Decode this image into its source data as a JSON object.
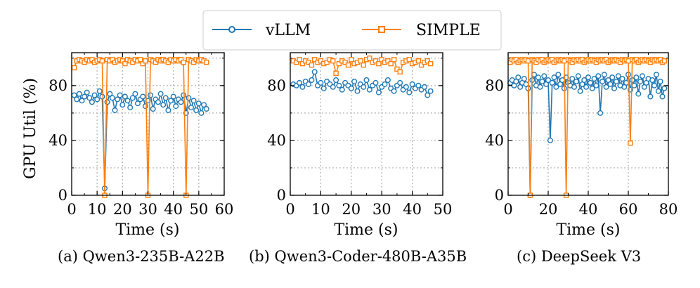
{
  "chart_data": [
    {
      "type": "line",
      "caption": "(a) Qwen3-235B-A22B",
      "xlabel": "Time (s)",
      "ylabel": "GPU Util (%)",
      "xlim": [
        0,
        60
      ],
      "ylim": [
        0,
        104
      ],
      "xticks": [
        0,
        10,
        20,
        30,
        40,
        50,
        60
      ],
      "yticks": [
        0,
        40,
        80
      ],
      "grid": true,
      "series": [
        {
          "name": "vLLM",
          "x": [
            1,
            2,
            3,
            4,
            5,
            6,
            7,
            8,
            9,
            10,
            11,
            12,
            13,
            14,
            15,
            16,
            17,
            18,
            19,
            20,
            21,
            22,
            23,
            24,
            25,
            26,
            27,
            28,
            29,
            30,
            31,
            32,
            33,
            34,
            35,
            36,
            37,
            38,
            39,
            40,
            41,
            42,
            43,
            44,
            45,
            46,
            47,
            48,
            49,
            50,
            51,
            52,
            53
          ],
          "values": [
            73,
            70,
            74,
            69,
            72,
            75,
            71,
            68,
            73,
            70,
            76,
            72,
            5,
            68,
            74,
            71,
            62,
            70,
            73,
            66,
            72,
            69,
            64,
            71,
            74,
            67,
            70,
            72,
            65,
            69,
            73,
            63,
            70,
            68,
            74,
            66,
            71,
            62,
            69,
            72,
            65,
            70,
            68,
            73,
            60,
            71,
            64,
            69,
            62,
            67,
            60,
            66,
            63
          ]
        },
        {
          "name": "SIMPLE",
          "x": [
            1,
            2,
            3,
            4,
            5,
            6,
            7,
            8,
            9,
            10,
            11,
            12,
            13,
            14,
            15,
            16,
            17,
            18,
            19,
            20,
            21,
            22,
            23,
            24,
            25,
            26,
            27,
            28,
            29,
            30,
            31,
            32,
            33,
            34,
            35,
            36,
            37,
            38,
            39,
            40,
            41,
            42,
            43,
            44,
            45,
            46,
            47,
            48,
            49,
            50,
            51,
            52,
            53
          ],
          "values": [
            93,
            98,
            99,
            98,
            97,
            99,
            98,
            99,
            97,
            98,
            99,
            98,
            0,
            99,
            98,
            99,
            97,
            98,
            99,
            98,
            96,
            99,
            98,
            97,
            99,
            98,
            99,
            96,
            98,
            0,
            99,
            98,
            97,
            99,
            98,
            99,
            98,
            97,
            99,
            98,
            99,
            98,
            99,
            97,
            0,
            99,
            98,
            97,
            99,
            98,
            99,
            98,
            97
          ]
        }
      ]
    },
    {
      "type": "line",
      "caption": "(b) Qwen3-Coder-480B-A35B",
      "xlabel": "Time (s)",
      "ylabel": "",
      "xlim": [
        0,
        50
      ],
      "ylim": [
        0,
        104
      ],
      "xticks": [
        0,
        10,
        20,
        30,
        40,
        50
      ],
      "yticks": [
        0,
        40,
        80
      ],
      "grid": true,
      "series": [
        {
          "name": "vLLM",
          "x": [
            1,
            2,
            3,
            4,
            5,
            6,
            7,
            8,
            9,
            10,
            11,
            12,
            13,
            14,
            15,
            16,
            17,
            18,
            19,
            20,
            21,
            22,
            23,
            24,
            25,
            26,
            27,
            28,
            29,
            30,
            31,
            32,
            33,
            34,
            35,
            36,
            37,
            38,
            39,
            40,
            41,
            42,
            43,
            44,
            45,
            46
          ],
          "values": [
            81,
            80,
            82,
            79,
            83,
            81,
            84,
            90,
            80,
            82,
            78,
            83,
            81,
            79,
            84,
            80,
            77,
            82,
            80,
            78,
            83,
            76,
            81,
            79,
            84,
            77,
            80,
            82,
            75,
            79,
            81,
            84,
            78,
            76,
            80,
            82,
            77,
            79,
            75,
            81,
            78,
            80,
            77,
            79,
            73,
            76
          ]
        },
        {
          "name": "SIMPLE",
          "x": [
            1,
            2,
            3,
            4,
            5,
            6,
            7,
            8,
            9,
            10,
            11,
            12,
            13,
            14,
            15,
            16,
            17,
            18,
            19,
            20,
            21,
            22,
            23,
            24,
            25,
            26,
            27,
            28,
            29,
            30,
            31,
            32,
            33,
            34,
            35,
            36,
            37,
            38,
            39,
            40,
            41,
            42,
            43,
            44,
            45,
            46
          ],
          "values": [
            98,
            97,
            99,
            96,
            98,
            97,
            95,
            99,
            97,
            98,
            96,
            97,
            99,
            98,
            89,
            96,
            98,
            97,
            95,
            99,
            96,
            97,
            98,
            95,
            99,
            100,
            97,
            98,
            96,
            99,
            97,
            98,
            96,
            99,
            92,
            90,
            97,
            98,
            99,
            96,
            97,
            98,
            95,
            97,
            98,
            96
          ]
        }
      ]
    },
    {
      "type": "line",
      "caption": "(c) DeepSeek V3",
      "xlabel": "Time (s)",
      "ylabel": "",
      "xlim": [
        0,
        80
      ],
      "ylim": [
        0,
        104
      ],
      "xticks": [
        0,
        20,
        40,
        60,
        80
      ],
      "yticks": [
        0,
        40,
        80
      ],
      "grid": true,
      "series": [
        {
          "name": "vLLM",
          "x": [
            1,
            2,
            3,
            4,
            5,
            6,
            7,
            8,
            9,
            10,
            11,
            12,
            13,
            14,
            15,
            16,
            17,
            18,
            19,
            20,
            21,
            22,
            23,
            24,
            25,
            26,
            27,
            28,
            29,
            30,
            31,
            32,
            33,
            34,
            35,
            36,
            37,
            38,
            39,
            40,
            41,
            42,
            43,
            44,
            45,
            46,
            47,
            48,
            49,
            50,
            51,
            52,
            53,
            54,
            55,
            56,
            57,
            58,
            59,
            60,
            61,
            62,
            63,
            64,
            65,
            66,
            67,
            68,
            69,
            70,
            71,
            72,
            73,
            74,
            75,
            76,
            77,
            78
          ],
          "values": [
            82,
            84,
            80,
            83,
            86,
            79,
            82,
            85,
            81,
            78,
            0,
            84,
            88,
            80,
            86,
            79,
            83,
            87,
            81,
            84,
            40,
            82,
            86,
            79,
            88,
            81,
            84,
            78,
            86,
            82,
            80,
            85,
            79,
            83,
            87,
            76,
            81,
            84,
            79,
            86,
            82,
            78,
            85,
            80,
            87,
            60,
            83,
            88,
            79,
            84,
            81,
            86,
            78,
            83,
            87,
            80,
            85,
            79,
            82,
            88,
            77,
            84,
            80,
            86,
            74,
            83,
            87,
            79,
            82,
            85,
            72,
            84,
            80,
            88,
            76,
            83,
            72,
            78
          ]
        },
        {
          "name": "SIMPLE",
          "x": [
            1,
            2,
            3,
            4,
            5,
            6,
            7,
            8,
            9,
            10,
            11,
            12,
            13,
            14,
            15,
            16,
            17,
            18,
            19,
            20,
            21,
            22,
            23,
            24,
            25,
            26,
            27,
            28,
            29,
            30,
            31,
            32,
            33,
            34,
            35,
            36,
            37,
            38,
            39,
            40,
            41,
            42,
            43,
            44,
            45,
            46,
            47,
            48,
            49,
            50,
            51,
            52,
            53,
            54,
            55,
            56,
            57,
            58,
            59,
            60,
            61,
            62,
            63,
            64,
            65,
            66,
            67,
            68,
            69,
            70,
            71,
            72,
            73,
            74,
            75,
            76,
            77,
            78
          ],
          "values": [
            97,
            99,
            98,
            99,
            97,
            98,
            99,
            98,
            99,
            98,
            0,
            99,
            98,
            97,
            99,
            98,
            99,
            97,
            98,
            99,
            98,
            99,
            97,
            98,
            99,
            98,
            99,
            98,
            0,
            99,
            98,
            97,
            99,
            98,
            99,
            98,
            99,
            97,
            98,
            99,
            98,
            99,
            98,
            97,
            99,
            98,
            99,
            98,
            99,
            97,
            98,
            99,
            98,
            99,
            98,
            97,
            99,
            98,
            99,
            98,
            38,
            99,
            98,
            99,
            97,
            98,
            99,
            98,
            99,
            98,
            97,
            99,
            98,
            99,
            98,
            99,
            97,
            98
          ]
        }
      ]
    }
  ],
  "legend": [
    {
      "name": "vLLM",
      "color": "#1f77b4",
      "marker": "circle"
    },
    {
      "name": "SIMPLE",
      "color": "#ff7f0e",
      "marker": "square"
    }
  ]
}
